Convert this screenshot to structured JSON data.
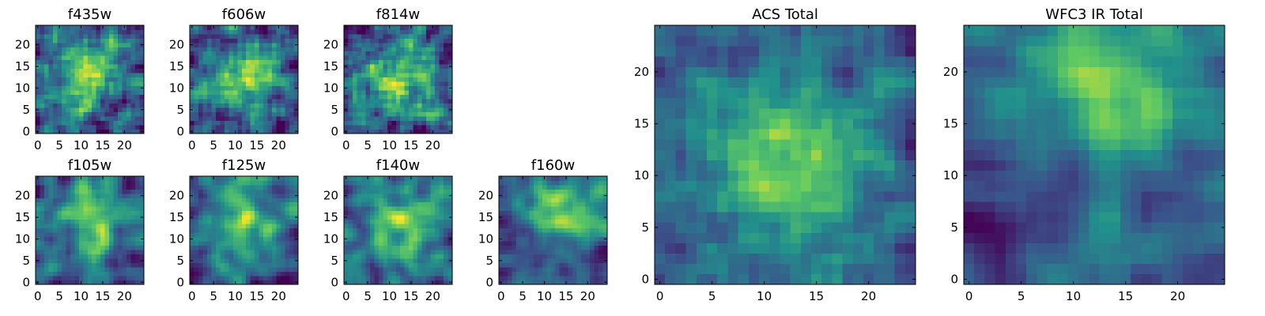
{
  "chart_data": {
    "type": "heatmap",
    "grid_size": 25,
    "colormap": "viridis",
    "colormap_stops": [
      "#440154",
      "#3b528b",
      "#21918c",
      "#5ec962",
      "#fde725"
    ],
    "grid": false,
    "x_ticks": [
      0,
      5,
      10,
      15,
      20
    ],
    "y_ticks": [
      0,
      5,
      10,
      15,
      20
    ],
    "panels": [
      {
        "id": "f435w",
        "title": "f435w",
        "xlim": [
          0,
          25
        ],
        "ylim": [
          0,
          25
        ],
        "peak": [
          12,
          12
        ],
        "smooth": 1,
        "noise": 0.55
      },
      {
        "id": "f606w",
        "title": "f606w",
        "xlim": [
          0,
          25
        ],
        "ylim": [
          0,
          25
        ],
        "peak": [
          12,
          12
        ],
        "smooth": 1,
        "noise": 0.5
      },
      {
        "id": "f814w",
        "title": "f814w",
        "xlim": [
          0,
          25
        ],
        "ylim": [
          0,
          25
        ],
        "peak": [
          12,
          12
        ],
        "smooth": 1,
        "noise": 0.5
      },
      {
        "id": "f105w",
        "title": "f105w",
        "xlim": [
          0,
          25
        ],
        "ylim": [
          0,
          25
        ],
        "peak": [
          13,
          13
        ],
        "smooth": 2,
        "noise": 0.45
      },
      {
        "id": "f125w",
        "title": "f125w",
        "xlim": [
          0,
          25
        ],
        "ylim": [
          0,
          25
        ],
        "peak": [
          12,
          14
        ],
        "smooth": 2,
        "noise": 0.45
      },
      {
        "id": "f140w",
        "title": "f140w",
        "xlim": [
          0,
          25
        ],
        "ylim": [
          0,
          25
        ],
        "peak": [
          13,
          13
        ],
        "smooth": 2,
        "noise": 0.4
      },
      {
        "id": "f160w",
        "title": "f160w",
        "xlim": [
          0,
          25
        ],
        "ylim": [
          0,
          25
        ],
        "peak": [
          14,
          17
        ],
        "smooth": 2,
        "noise": 0.4
      },
      {
        "id": "acs_total",
        "title": "ACS Total",
        "xlim": [
          0,
          25
        ],
        "ylim": [
          0,
          25
        ],
        "peak": [
          12,
          11
        ],
        "smooth": 1,
        "noise": 0.3
      },
      {
        "id": "wfc3_ir_total",
        "title": "WFC3 IR Total",
        "xlim": [
          0,
          25
        ],
        "ylim": [
          0,
          25
        ],
        "peak": [
          14,
          20
        ],
        "smooth": 2,
        "noise": 0.3
      }
    ]
  }
}
